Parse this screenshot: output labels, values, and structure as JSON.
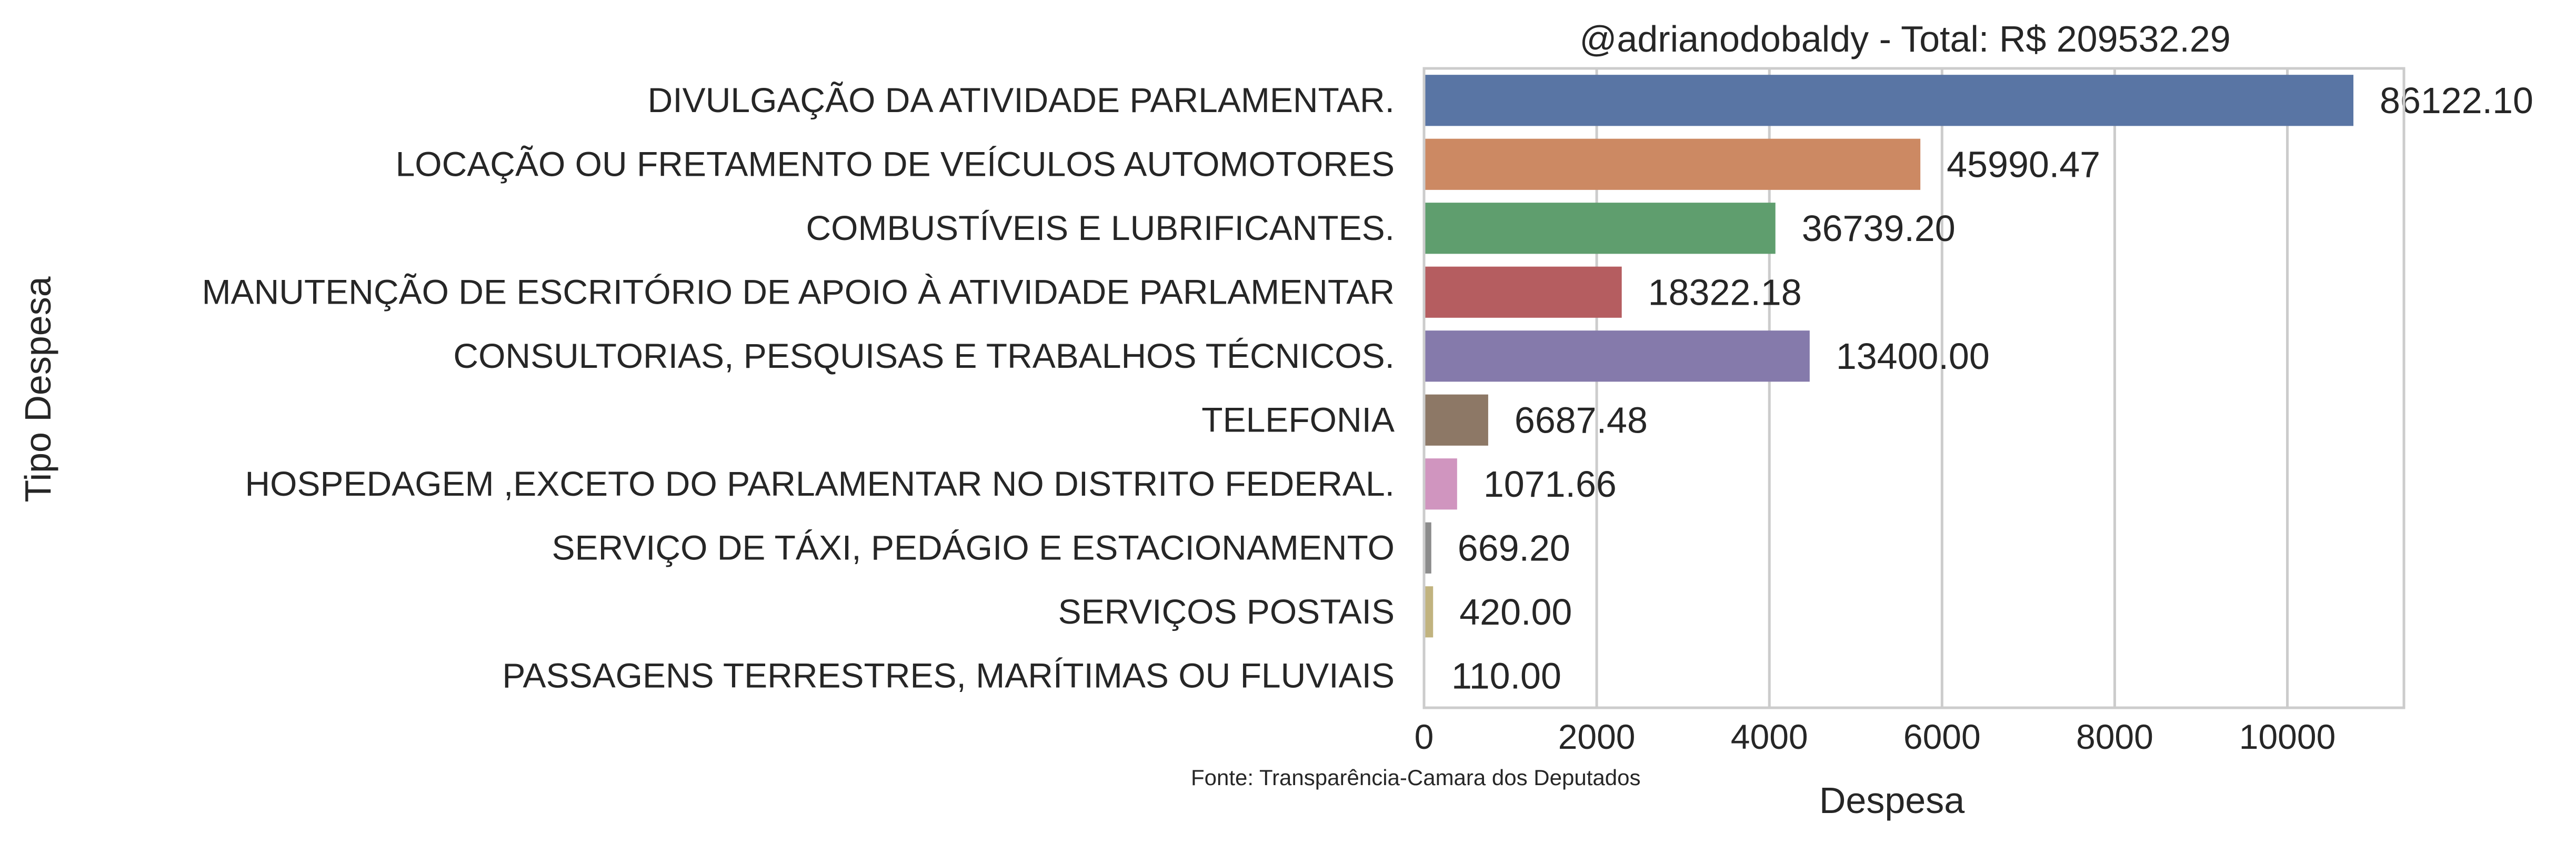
{
  "chart_data": {
    "type": "bar",
    "orientation": "horizontal",
    "title": "@adrianodobaldy - Total: R$ 209532.29",
    "xlabel": "Despesa",
    "ylabel": "Tipo Despesa",
    "xlim": [
      0,
      11350
    ],
    "xticks": [
      0,
      2000,
      4000,
      6000,
      8000,
      10000
    ],
    "xtick_labels": [
      "0",
      "2000",
      "4000",
      "6000",
      "8000",
      "10000"
    ],
    "grid": "vertical",
    "footnote": "Fonte: Transparência-Camara dos Deputados",
    "categories": [
      "DIVULGAÇÃO DA ATIVIDADE PARLAMENTAR.",
      "LOCAÇÃO OU FRETAMENTO DE VEÍCULOS AUTOMOTORES",
      "COMBUSTÍVEIS E LUBRIFICANTES.",
      "MANUTENÇÃO DE ESCRITÓRIO DE APOIO À ATIVIDADE PARLAMENTAR",
      "CONSULTORIAS, PESQUISAS E TRABALHOS TÉCNICOS.",
      "TELEFONIA",
      "HOSPEDAGEM ,EXCETO DO PARLAMENTAR NO DISTRITO FEDERAL.",
      "SERVIÇO DE TÁXI, PEDÁGIO E ESTACIONAMENTO",
      "SERVIÇOS POSTAIS",
      "PASSAGENS TERRESTRES, MARÍTIMAS OU FLUVIAIS"
    ],
    "values": [
      10765,
      5749,
      4070,
      2290,
      4467,
      743,
      383,
      84,
      105,
      12
    ],
    "data_labels": [
      "86122.10",
      "45990.47",
      "36739.20",
      "18322.18",
      "13400.00",
      "6687.48",
      "1071.66",
      "669.20",
      "420.00",
      "110.00"
    ],
    "colors": [
      "#5975a4",
      "#cc8963",
      "#5f9e6e",
      "#b55d60",
      "#857aab",
      "#8d7866",
      "#d095bf",
      "#8c8c8c",
      "#c1b37f",
      "#85b6c7"
    ]
  }
}
